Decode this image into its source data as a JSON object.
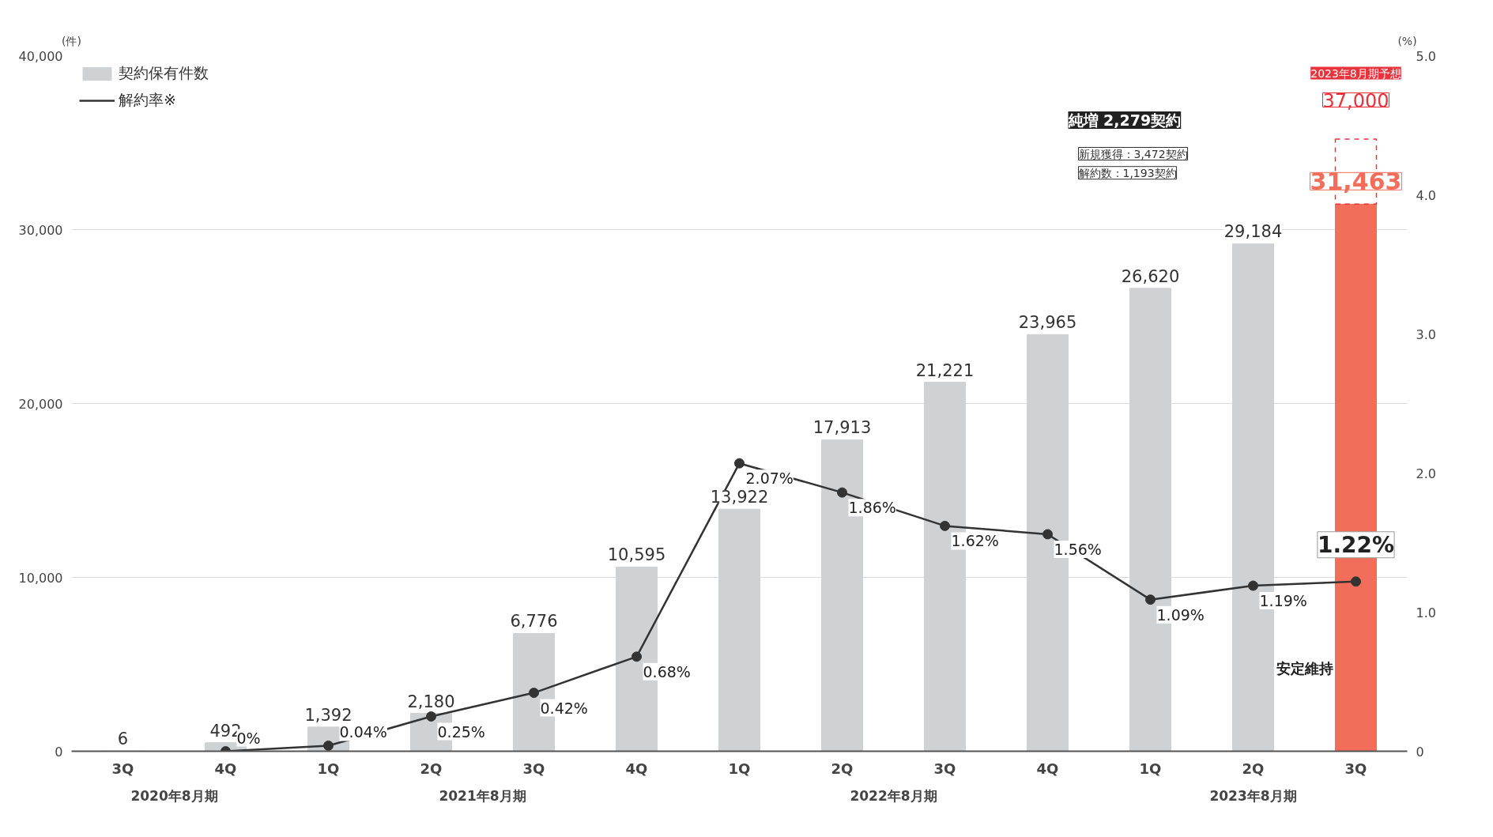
{
  "chart_data": {
    "type": "bar",
    "ylabel": "(件)",
    "y2label": "(%)",
    "categories": [
      "3Q",
      "4Q",
      "1Q",
      "2Q",
      "3Q",
      "4Q",
      "1Q",
      "2Q",
      "3Q",
      "4Q",
      "1Q",
      "2Q",
      "3Q"
    ],
    "series": [
      {
        "name": "契約保有件数",
        "color": "#d0d1d3",
        "colors": [
          "#d0d1d3",
          "#d0d1d3",
          "#d0d1d3",
          "#d0d1d3",
          "#d0d1d3",
          "#d0d1d3",
          "#d0d1d3",
          "#d0d1d3",
          "#d0d1d3",
          "#d0d1d3",
          "#d0d1d3",
          "#d0d1d3",
          "#f26e5a"
        ],
        "values": [
          6,
          492,
          1392,
          2180,
          6776,
          10595,
          13922,
          17913,
          21221,
          23965,
          26620,
          29184,
          31463
        ],
        "value_labels": [
          "6",
          "492",
          "1,392",
          "2,180",
          "6,776",
          "10,595",
          "13,922",
          "17,913",
          "21,221",
          "23,965",
          "26,620",
          "29,184",
          "31,463"
        ]
      },
      {
        "name": "解約率※",
        "type": "line",
        "axis": "y2",
        "color": "#333333",
        "values": [
          null,
          0,
          0.04,
          0.25,
          0.42,
          0.68,
          2.07,
          1.86,
          1.62,
          1.56,
          1.09,
          1.19,
          1.22
        ],
        "value_labels": [
          null,
          "0%",
          "0.04%",
          "0.25%",
          "0.42%",
          "0.68%",
          "2.07%",
          "1.86%",
          "1.62%",
          "1.56%",
          "1.09%",
          "1.19%",
          "1.22%"
        ]
      }
    ],
    "ylim": [
      0,
      40000
    ],
    "yticks": [
      0,
      {
        "value": 10000,
        "label": "10,000"
      },
      {
        "value": 20000,
        "label": "20,000"
      },
      {
        "value": 30000,
        "label": "30,000"
      },
      {
        "value": 40000,
        "label": "40,000"
      }
    ],
    "y2lim": [
      0,
      5
    ],
    "y2ticks": [
      0,
      {
        "value": 1,
        "label": "1.0"
      },
      {
        "value": 2,
        "label": "2.0"
      },
      {
        "value": 3,
        "label": "3.0"
      },
      {
        "value": 4,
        "label": "4.0"
      },
      {
        "value": 5,
        "label": "5.0"
      }
    ],
    "grid": "y",
    "legend": "top left",
    "marker": "circle",
    "line_style": "solid",
    "annotations": [
      "2020年8月期",
      "2021年8月期",
      "2022年8月期",
      "2023年8月期",
      "2023年8月期予想",
      "37,000",
      "純増 2,279契約",
      "新規獲得：3,472契約",
      "解約数：1,193契約",
      "安定維持"
    ]
  }
}
